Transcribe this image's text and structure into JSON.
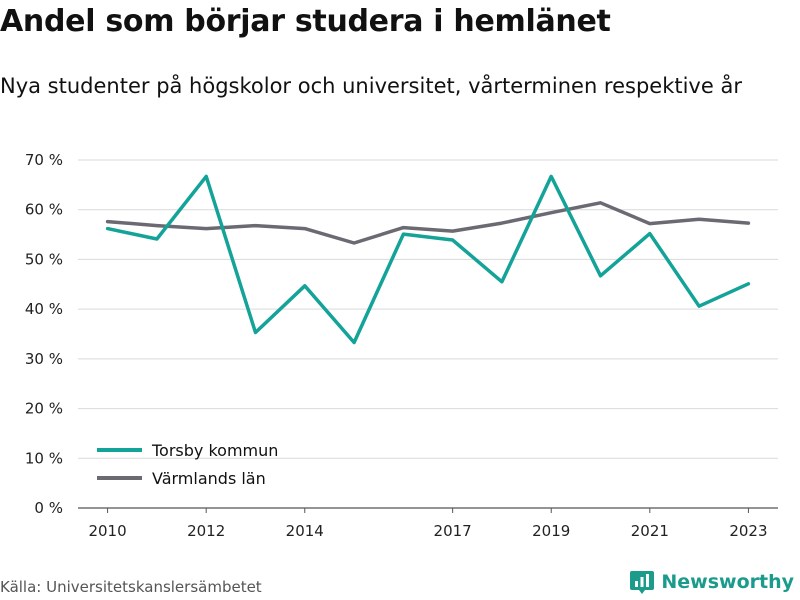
{
  "title": "Andel som börjar studera i hemlänet",
  "subtitle": "Nya studenter på högskolor och universitet, vårterminen respektive år",
  "source": "Källa: Universitetskanslersämbetet",
  "brand": {
    "name": "Newsworthy",
    "icon": "bar-chart-logo-icon",
    "color": "#1a9b8c"
  },
  "chart_data": {
    "type": "line",
    "x": [
      2010,
      2011,
      2012,
      2013,
      2014,
      2015,
      2016,
      2017,
      2018,
      2019,
      2020,
      2021,
      2022,
      2023
    ],
    "xticks": [
      {
        "value": 2010,
        "label": "2010"
      },
      {
        "value": 2012,
        "label": "2012"
      },
      {
        "value": 2014,
        "label": "2014"
      },
      {
        "value": 2017,
        "label": "2017"
      },
      {
        "value": 2019,
        "label": "2019"
      },
      {
        "value": 2021,
        "label": "2021"
      },
      {
        "value": 2023,
        "label": "2023"
      }
    ],
    "yticks": [
      {
        "value": 0,
        "label": "0 %"
      },
      {
        "value": 10,
        "label": "10 %"
      },
      {
        "value": 20,
        "label": "20 %"
      },
      {
        "value": 30,
        "label": "30 %"
      },
      {
        "value": 40,
        "label": "40 %"
      },
      {
        "value": 50,
        "label": "50 %"
      },
      {
        "value": 60,
        "label": "60 %"
      },
      {
        "value": 70,
        "label": "70 %"
      }
    ],
    "ylim": [
      0,
      70
    ],
    "xlim": [
      2009.4,
      2023.6
    ],
    "grid": true,
    "legend_position": "bottom-left",
    "series": [
      {
        "name": "Torsby kommun",
        "color": "#14a398",
        "values": [
          56.2,
          54.1,
          66.7,
          35.3,
          44.7,
          33.3,
          55.1,
          53.9,
          45.5,
          66.7,
          46.7,
          55.2,
          40.6,
          45.1
        ]
      },
      {
        "name": "Värmlands län",
        "color": "#6b6a72",
        "values": [
          57.6,
          56.8,
          56.2,
          56.8,
          56.2,
          53.3,
          56.4,
          55.7,
          57.3,
          59.4,
          61.4,
          57.2,
          58.1,
          57.3
        ]
      }
    ]
  }
}
